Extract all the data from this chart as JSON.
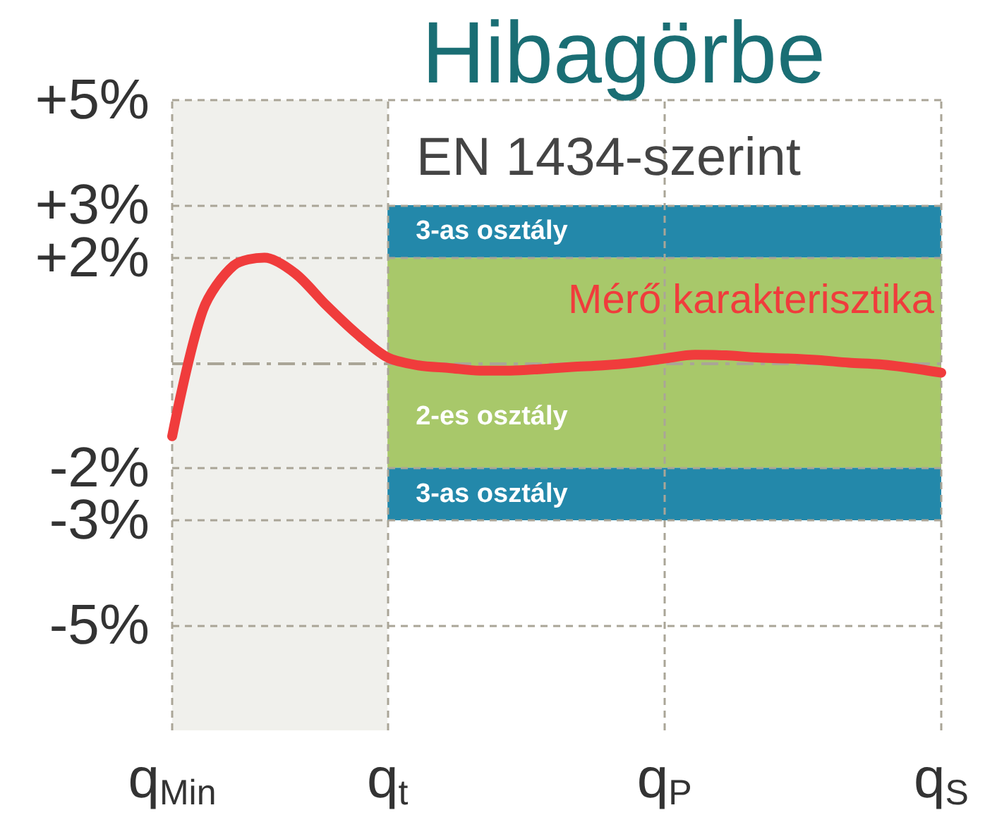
{
  "chart_data": {
    "type": "line",
    "title": "Hibagörbe",
    "subtitle": "EN 1434-szerint",
    "categories": [
      "q$_{Min}$",
      null,
      null,
      null,
      null,
      null,
      null,
      "q$_{t}$",
      null,
      null,
      null,
      null,
      null,
      null,
      null,
      null,
      "q$_{P}$",
      null,
      null,
      null,
      null,
      null,
      null,
      null,
      null,
      "q$_{S}$"
    ],
    "series": [
      {
        "name": "Mérő karakterisztika",
        "color": "#f03c3c",
        "values": [
          -1.4,
          1.0,
          1.85,
          2.0,
          1.7,
          1.1,
          0.55,
          0.1,
          -0.05,
          -0.1,
          -0.15,
          -0.15,
          -0.12,
          -0.08,
          -0.05,
          0.0,
          0.08,
          0.15,
          0.14,
          0.1,
          0.08,
          0.05,
          0.0,
          -0.03,
          -0.1,
          -0.19
        ]
      }
    ],
    "ylim": [
      -7,
      5
    ],
    "yticks": [
      {
        "value": 5,
        "label": "+5%"
      },
      {
        "value": 3,
        "label": "+3%"
      },
      {
        "value": 2,
        "label": "+2%"
      },
      {
        "value": -2,
        "label": "-2%"
      },
      {
        "value": -3,
        "label": "-3%"
      },
      {
        "value": -5,
        "label": "-5%"
      }
    ],
    "bands": [
      {
        "axis": "x",
        "from": "q$_{Min}$",
        "to": "q$_{t}$",
        "color": "#f0f0ec"
      },
      {
        "axis": "y",
        "from": 2,
        "to": 3,
        "label": "3-as osztály",
        "color": "#2388aa"
      },
      {
        "axis": "y",
        "from": -2,
        "to": 2,
        "label": "2-es osztály",
        "color": "#a8c86a"
      },
      {
        "axis": "y",
        "from": -3,
        "to": -2,
        "label": "3-as osztály",
        "color": "#2388aa"
      }
    ],
    "ref_lines": [
      {
        "axis": "y",
        "value": 0,
        "color": "#aaa597",
        "line_style": "dashdot"
      }
    ],
    "grid": true,
    "legend": false,
    "line_style": "solid"
  }
}
